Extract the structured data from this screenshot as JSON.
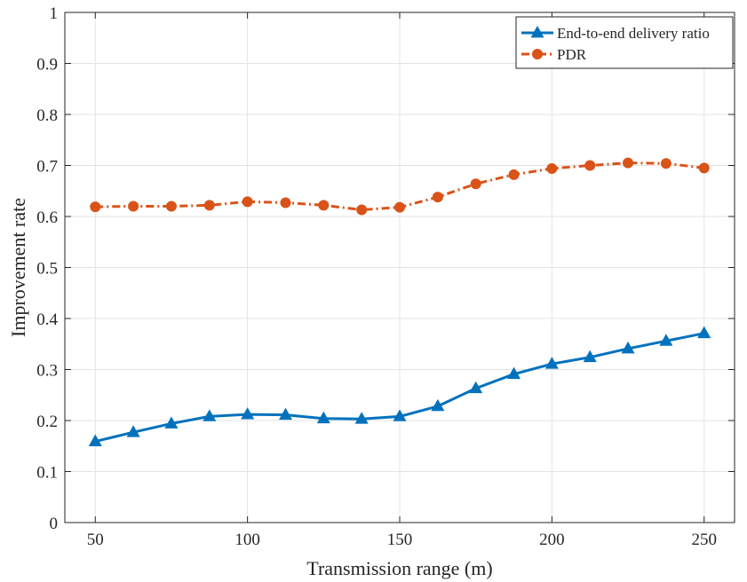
{
  "chart_data": {
    "type": "line",
    "xlabel": "Transmission range (m)",
    "ylabel": "Improvement rate",
    "xlim": [
      40,
      260
    ],
    "ylim": [
      0,
      1
    ],
    "xticks": [
      50,
      100,
      150,
      200,
      250
    ],
    "yticks": [
      0,
      0.1,
      0.2,
      0.3,
      0.4,
      0.5,
      0.6,
      0.7,
      0.8,
      0.9,
      1
    ],
    "xtick_labels": [
      "50",
      "100",
      "150",
      "200",
      "250"
    ],
    "ytick_labels": [
      "0",
      "0.1",
      "0.2",
      "0.3",
      "0.4",
      "0.5",
      "0.6",
      "0.7",
      "0.8",
      "0.9",
      "1"
    ],
    "grid": true,
    "legend_position": "top-right",
    "x": [
      50,
      62.5,
      75,
      87.5,
      100,
      112.5,
      125,
      137.5,
      150,
      162.5,
      175,
      187.5,
      200,
      212.5,
      225,
      237.5,
      250
    ],
    "series": [
      {
        "name": "End-to-end delivery ratio",
        "color": "#0072BD",
        "line_style": "solid",
        "marker": "triangle",
        "values": [
          0.159,
          0.177,
          0.194,
          0.208,
          0.212,
          0.211,
          0.204,
          0.203,
          0.208,
          0.228,
          0.263,
          0.291,
          0.311,
          0.324,
          0.341,
          0.356,
          0.371
        ]
      },
      {
        "name": "PDR",
        "color": "#D95319",
        "line_style": "dash-dot",
        "marker": "circle",
        "values": [
          0.619,
          0.62,
          0.62,
          0.622,
          0.629,
          0.627,
          0.622,
          0.613,
          0.618,
          0.638,
          0.664,
          0.682,
          0.694,
          0.7,
          0.705,
          0.704,
          0.695
        ]
      }
    ]
  }
}
